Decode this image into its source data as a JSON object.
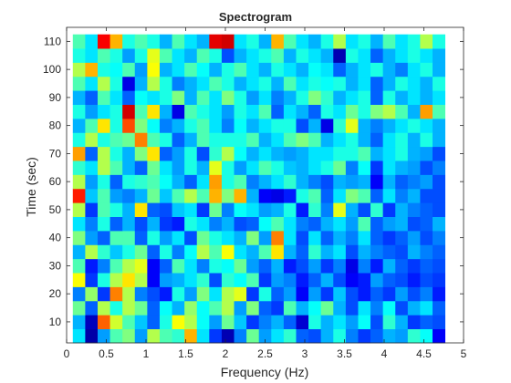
{
  "chart_data": {
    "type": "heatmap",
    "title": "Spectrogram",
    "xlabel": "Frequency (Hz)",
    "ylabel": "Time (sec)",
    "xlim": [
      0,
      5
    ],
    "ylim": [
      2.5,
      115
    ],
    "x_ticks": [
      0,
      0.5,
      1,
      1.5,
      2,
      2.5,
      3,
      3.5,
      4,
      4.5,
      5
    ],
    "x_tick_labels": [
      "0",
      "0.5",
      "1",
      "1.5",
      "2",
      "2.5",
      "3",
      "3.5",
      "4",
      "4.5",
      "5"
    ],
    "y_ticks": [
      10,
      20,
      30,
      40,
      50,
      60,
      70,
      80,
      90,
      100,
      110
    ],
    "y_tick_labels": [
      "10",
      "20",
      "30",
      "40",
      "50",
      "60",
      "70",
      "80",
      "90",
      "100",
      "110"
    ],
    "colormap": "jet",
    "color_range": [
      0,
      1
    ],
    "grid": false,
    "x_centers": [
      0.1563,
      0.3125,
      0.4688,
      0.625,
      0.7813,
      0.9375,
      1.0938,
      1.25,
      1.4063,
      1.5625,
      1.7188,
      1.875,
      2.0313,
      2.1875,
      2.3438,
      2.5,
      2.6563,
      2.8125,
      2.9688,
      3.125,
      3.2813,
      3.4375,
      3.5938,
      3.75,
      3.9063,
      4.0625,
      4.2188,
      4.375,
      4.5313,
      4.6875
    ],
    "y_centers": [
      5,
      10,
      15,
      20,
      25,
      30,
      35,
      40,
      45,
      50,
      55,
      60,
      65,
      70,
      75,
      80,
      85,
      90,
      95,
      100,
      105,
      110
    ],
    "values": [
      [
        0.35,
        0.04,
        0.28,
        0.45,
        0.5,
        0.28,
        0.55,
        0.45,
        0.42,
        0.7,
        0.35,
        0.18,
        0.05,
        0.25,
        0.48,
        0.28,
        0.35,
        0.42,
        0.22,
        0.2,
        0.3,
        0.4,
        0.25,
        0.18,
        0.22,
        0.3,
        0.28,
        0.42,
        0.38,
        0.12
      ],
      [
        0.3,
        0.06,
        0.78,
        0.58,
        0.45,
        0.32,
        0.22,
        0.4,
        0.62,
        0.55,
        0.38,
        0.28,
        0.48,
        0.32,
        0.18,
        0.25,
        0.3,
        0.22,
        0.08,
        0.4,
        0.3,
        0.35,
        0.28,
        0.38,
        0.2,
        0.42,
        0.3,
        0.18,
        0.22,
        0.2
      ],
      [
        0.48,
        0.22,
        0.55,
        0.4,
        0.55,
        0.48,
        0.22,
        0.38,
        0.3,
        0.52,
        0.38,
        0.45,
        0.55,
        0.28,
        0.5,
        0.22,
        0.18,
        0.45,
        0.3,
        0.38,
        0.48,
        0.3,
        0.2,
        0.35,
        0.25,
        0.38,
        0.2,
        0.3,
        0.35,
        0.22
      ],
      [
        0.25,
        0.52,
        0.18,
        0.75,
        0.55,
        0.25,
        0.2,
        0.15,
        0.4,
        0.28,
        0.5,
        0.35,
        0.55,
        0.6,
        0.18,
        0.4,
        0.22,
        0.28,
        0.12,
        0.28,
        0.18,
        0.32,
        0.2,
        0.15,
        0.22,
        0.18,
        0.28,
        0.2,
        0.25,
        0.15
      ],
      [
        0.62,
        0.18,
        0.4,
        0.55,
        0.65,
        0.55,
        0.12,
        0.28,
        0.3,
        0.35,
        0.42,
        0.2,
        0.42,
        0.38,
        0.45,
        0.18,
        0.28,
        0.25,
        0.15,
        0.22,
        0.3,
        0.2,
        0.12,
        0.15,
        0.28,
        0.22,
        0.2,
        0.15,
        0.2,
        0.18
      ],
      [
        0.45,
        0.15,
        0.25,
        0.45,
        0.55,
        0.6,
        0.12,
        0.22,
        0.45,
        0.35,
        0.25,
        0.4,
        0.38,
        0.48,
        0.28,
        0.22,
        0.3,
        0.15,
        0.2,
        0.28,
        0.18,
        0.25,
        0.1,
        0.25,
        0.15,
        0.3,
        0.22,
        0.18,
        0.22,
        0.2
      ],
      [
        0.3,
        0.55,
        0.42,
        0.32,
        0.4,
        0.48,
        0.22,
        0.4,
        0.25,
        0.38,
        0.55,
        0.45,
        0.62,
        0.35,
        0.3,
        0.45,
        0.65,
        0.3,
        0.22,
        0.42,
        0.3,
        0.35,
        0.2,
        0.3,
        0.25,
        0.22,
        0.2,
        0.3,
        0.25,
        0.22
      ],
      [
        0.5,
        0.28,
        0.22,
        0.45,
        0.45,
        0.22,
        0.4,
        0.28,
        0.35,
        0.2,
        0.48,
        0.4,
        0.35,
        0.3,
        0.5,
        0.28,
        0.75,
        0.35,
        0.2,
        0.35,
        0.22,
        0.3,
        0.25,
        0.35,
        0.22,
        0.18,
        0.22,
        0.28,
        0.2,
        0.25
      ],
      [
        0.35,
        0.25,
        0.4,
        0.22,
        0.3,
        0.2,
        0.3,
        0.18,
        0.15,
        0.4,
        0.35,
        0.25,
        0.3,
        0.2,
        0.22,
        0.38,
        0.45,
        0.35,
        0.25,
        0.22,
        0.3,
        0.35,
        0.28,
        0.45,
        0.22,
        0.28,
        0.3,
        0.2,
        0.22,
        0.3
      ],
      [
        0.55,
        0.18,
        0.45,
        0.4,
        0.3,
        0.65,
        0.22,
        0.2,
        0.32,
        0.35,
        0.18,
        0.48,
        0.25,
        0.38,
        0.35,
        0.28,
        0.3,
        0.4,
        0.15,
        0.42,
        0.25,
        0.6,
        0.3,
        0.2,
        0.42,
        0.18,
        0.3,
        0.25,
        0.22,
        0.2
      ],
      [
        0.85,
        0.32,
        0.45,
        0.28,
        0.25,
        0.3,
        0.48,
        0.32,
        0.45,
        0.55,
        0.45,
        0.7,
        0.5,
        0.7,
        0.3,
        0.12,
        0.1,
        0.15,
        0.4,
        0.45,
        0.22,
        0.35,
        0.5,
        0.45,
        0.22,
        0.35,
        0.25,
        0.3,
        0.2,
        0.2
      ],
      [
        0.55,
        0.28,
        0.4,
        0.22,
        0.4,
        0.42,
        0.45,
        0.38,
        0.3,
        0.22,
        0.35,
        0.72,
        0.4,
        0.45,
        0.25,
        0.3,
        0.35,
        0.42,
        0.3,
        0.25,
        0.2,
        0.3,
        0.28,
        0.3,
        0.12,
        0.3,
        0.22,
        0.25,
        0.28,
        0.2
      ],
      [
        0.42,
        0.35,
        0.55,
        0.45,
        0.3,
        0.22,
        0.48,
        0.35,
        0.28,
        0.4,
        0.3,
        0.6,
        0.4,
        0.28,
        0.35,
        0.45,
        0.4,
        0.32,
        0.3,
        0.35,
        0.4,
        0.48,
        0.25,
        0.38,
        0.18,
        0.35,
        0.3,
        0.28,
        0.2,
        0.25
      ],
      [
        0.72,
        0.22,
        0.55,
        0.4,
        0.3,
        0.5,
        0.65,
        0.22,
        0.28,
        0.4,
        0.2,
        0.42,
        0.55,
        0.38,
        0.3,
        0.35,
        0.3,
        0.28,
        0.3,
        0.35,
        0.35,
        0.4,
        0.4,
        0.45,
        0.3,
        0.35,
        0.4,
        0.3,
        0.28,
        0.2
      ],
      [
        0.4,
        0.55,
        0.4,
        0.45,
        0.48,
        0.75,
        0.45,
        0.4,
        0.22,
        0.3,
        0.45,
        0.4,
        0.4,
        0.4,
        0.45,
        0.3,
        0.35,
        0.45,
        0.5,
        0.45,
        0.3,
        0.35,
        0.4,
        0.3,
        0.22,
        0.35,
        0.4,
        0.3,
        0.4,
        0.3
      ],
      [
        0.3,
        0.45,
        0.65,
        0.4,
        0.8,
        0.5,
        0.38,
        0.25,
        0.3,
        0.4,
        0.45,
        0.35,
        0.25,
        0.38,
        0.3,
        0.35,
        0.4,
        0.4,
        0.2,
        0.3,
        0.1,
        0.42,
        0.6,
        0.3,
        0.25,
        0.3,
        0.35,
        0.4,
        0.35,
        0.3
      ],
      [
        0.4,
        0.28,
        0.35,
        0.4,
        0.92,
        0.45,
        0.65,
        0.3,
        0.1,
        0.45,
        0.4,
        0.35,
        0.28,
        0.4,
        0.35,
        0.45,
        0.22,
        0.35,
        0.3,
        0.22,
        0.4,
        0.35,
        0.48,
        0.4,
        0.5,
        0.55,
        0.45,
        0.3,
        0.72,
        0.45
      ],
      [
        0.3,
        0.22,
        0.45,
        0.35,
        0.22,
        0.38,
        0.35,
        0.4,
        0.5,
        0.3,
        0.45,
        0.35,
        0.5,
        0.4,
        0.28,
        0.35,
        0.25,
        0.3,
        0.4,
        0.5,
        0.42,
        0.3,
        0.35,
        0.4,
        0.22,
        0.4,
        0.3,
        0.35,
        0.3,
        0.35
      ],
      [
        0.45,
        0.35,
        0.55,
        0.4,
        0.1,
        0.3,
        0.55,
        0.4,
        0.25,
        0.3,
        0.35,
        0.45,
        0.4,
        0.3,
        0.35,
        0.4,
        0.3,
        0.45,
        0.35,
        0.4,
        0.38,
        0.4,
        0.3,
        0.35,
        0.22,
        0.3,
        0.4,
        0.35,
        0.3,
        0.4
      ],
      [
        0.55,
        0.7,
        0.4,
        0.38,
        0.45,
        0.28,
        0.62,
        0.3,
        0.35,
        0.45,
        0.38,
        0.3,
        0.4,
        0.45,
        0.35,
        0.3,
        0.4,
        0.35,
        0.3,
        0.38,
        0.35,
        0.22,
        0.3,
        0.35,
        0.4,
        0.3,
        0.25,
        0.35,
        0.4,
        0.3
      ],
      [
        0.4,
        0.35,
        0.45,
        0.4,
        0.28,
        0.4,
        0.6,
        0.45,
        0.35,
        0.3,
        0.45,
        0.4,
        0.2,
        0.3,
        0.35,
        0.4,
        0.45,
        0.3,
        0.4,
        0.35,
        0.3,
        0.05,
        0.4,
        0.35,
        0.22,
        0.3,
        0.35,
        0.4,
        0.35,
        0.3
      ],
      [
        0.45,
        0.35,
        0.88,
        0.7,
        0.4,
        0.45,
        0.4,
        0.3,
        0.45,
        0.35,
        0.3,
        0.9,
        0.92,
        0.35,
        0.4,
        0.3,
        0.7,
        0.45,
        0.35,
        0.3,
        0.4,
        0.55,
        0.35,
        0.4,
        0.3,
        0.45,
        0.35,
        0.4,
        0.55,
        0.4
      ]
    ]
  }
}
